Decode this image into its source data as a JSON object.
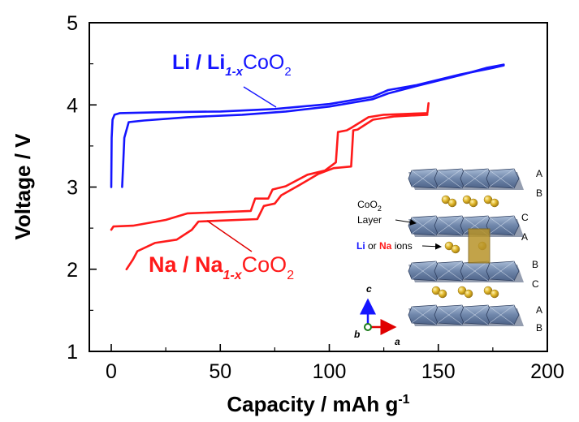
{
  "chart_data": {
    "type": "line",
    "xlabel": "Capacity  /  mAh g",
    "xlabel_sup": "-1",
    "ylabel": "Voltage  /  V",
    "xlim": [
      0,
      200
    ],
    "ylim": [
      1,
      5
    ],
    "xticks": [
      "0",
      "50",
      "100",
      "150",
      "200"
    ],
    "yticks": [
      "1",
      "2",
      "3",
      "4",
      "5"
    ],
    "grid": false,
    "series": [
      {
        "name": "Li / Li1-xCoO2",
        "color": "#1515ff",
        "segments": [
          {
            "part": "charge",
            "points": [
              [
                0,
                3.0
              ],
              [
                0.2,
                3.6
              ],
              [
                0.6,
                3.82
              ],
              [
                1.5,
                3.88
              ],
              [
                4,
                3.9
              ],
              [
                20,
                3.91
              ],
              [
                50,
                3.92
              ],
              [
                75,
                3.95
              ],
              [
                100,
                4.01
              ],
              [
                120,
                4.1
              ],
              [
                127,
                4.18
              ],
              [
                140,
                4.24
              ],
              [
                160,
                4.37
              ],
              [
                175,
                4.45
              ],
              [
                180,
                4.48
              ]
            ]
          },
          {
            "part": "discharge",
            "points": [
              [
                180,
                4.49
              ],
              [
                172,
                4.45
              ],
              [
                160,
                4.36
              ],
              [
                140,
                4.23
              ],
              [
                127,
                4.14
              ],
              [
                120,
                4.07
              ],
              [
                100,
                3.98
              ],
              [
                80,
                3.92
              ],
              [
                60,
                3.88
              ],
              [
                35,
                3.85
              ],
              [
                15,
                3.81
              ],
              [
                8,
                3.79
              ],
              [
                6,
                3.6
              ],
              [
                5.5,
                3.3
              ],
              [
                5,
                3.0
              ]
            ]
          }
        ]
      },
      {
        "name": "Na / Na1-xCoO2",
        "color": "#ff1a1a",
        "segments": [
          {
            "part": "charge",
            "points": [
              [
                0,
                2.48
              ],
              [
                1,
                2.52
              ],
              [
                10,
                2.53
              ],
              [
                25,
                2.6
              ],
              [
                35,
                2.68
              ],
              [
                45,
                2.69
              ],
              [
                64,
                2.71
              ],
              [
                66,
                2.86
              ],
              [
                72,
                2.86
              ],
              [
                74,
                2.97
              ],
              [
                80,
                3.01
              ],
              [
                90,
                3.15
              ],
              [
                98,
                3.2
              ],
              [
                103,
                3.3
              ],
              [
                104,
                3.67
              ],
              [
                108,
                3.69
              ],
              [
                110,
                3.72
              ],
              [
                118,
                3.85
              ],
              [
                125,
                3.88
              ],
              [
                135,
                3.89
              ],
              [
                145,
                3.9
              ],
              [
                145.5,
                4.02
              ]
            ]
          },
          {
            "part": "discharge",
            "points": [
              [
                145,
                3.88
              ],
              [
                130,
                3.86
              ],
              [
                120,
                3.82
              ],
              [
                113,
                3.7
              ],
              [
                111,
                3.69
              ],
              [
                110,
                3.25
              ],
              [
                102,
                3.23
              ],
              [
                95,
                3.16
              ],
              [
                86,
                3.02
              ],
              [
                78,
                2.9
              ],
              [
                75,
                2.8
              ],
              [
                70,
                2.77
              ],
              [
                67,
                2.61
              ],
              [
                40,
                2.58
              ],
              [
                37,
                2.48
              ],
              [
                30,
                2.36
              ],
              [
                20,
                2.32
              ],
              [
                12,
                2.22
              ],
              [
                10,
                2.12
              ],
              [
                7,
                2.0
              ]
            ]
          }
        ]
      }
    ]
  },
  "labels": {
    "li_label": {
      "prefix": "Li / Li",
      "sub": "1-x",
      "main": "CoO",
      "sub2": "2"
    },
    "na_label": {
      "prefix": "Na / Na",
      "sub": "1-x",
      "main": "CoO",
      "sub2": "2"
    }
  },
  "inset": {
    "layer_label_line1": "CoO",
    "layer_label_sub": "2",
    "layer_label_line2": "Layer",
    "ions_li": "Li",
    "ions_or": " or ",
    "ions_na": "Na",
    "ions_suffix": " ions",
    "stacking": [
      "A",
      "B",
      "C",
      "A",
      "B",
      "C",
      "A",
      "B"
    ],
    "axis_c": "c",
    "axis_a": "a",
    "axis_b": "b",
    "colors": {
      "octahedra": "#7f95b5",
      "ions": "#e0b629",
      "li": "#1515ff",
      "na": "#ff1a1a"
    }
  }
}
